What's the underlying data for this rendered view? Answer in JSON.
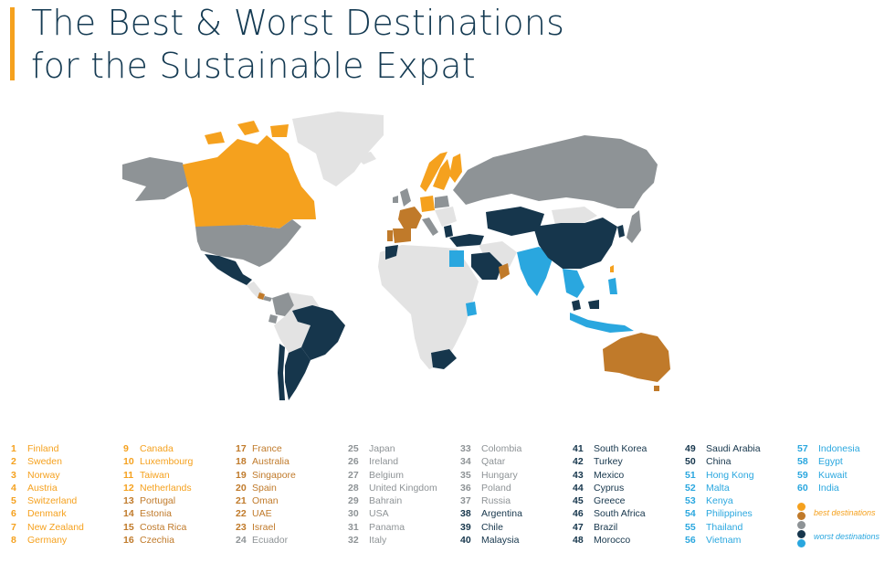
{
  "title": {
    "line1": "The Best & Worst Destinations",
    "line2": "for the Sustainable Expat"
  },
  "colors": {
    "accent": "#f5a11e",
    "tier1": "#f5a11e",
    "tier2": "#c07a2a",
    "tier3": "#8e9396",
    "tier4": "#16364c",
    "tier5": "#2aa7df",
    "unranked": "#e3e3e3"
  },
  "ranking": [
    {
      "rank": "1",
      "name": "Finland",
      "tier": 1
    },
    {
      "rank": "2",
      "name": "Sweden",
      "tier": 1
    },
    {
      "rank": "3",
      "name": "Norway",
      "tier": 1
    },
    {
      "rank": "4",
      "name": "Austria",
      "tier": 1
    },
    {
      "rank": "5",
      "name": "Switzerland",
      "tier": 1
    },
    {
      "rank": "6",
      "name": "Denmark",
      "tier": 1
    },
    {
      "rank": "7",
      "name": "New Zealand",
      "tier": 1
    },
    {
      "rank": "8",
      "name": "Germany",
      "tier": 1
    },
    {
      "rank": "9",
      "name": "Canada",
      "tier": 1
    },
    {
      "rank": "10",
      "name": "Luxembourg",
      "tier": 1
    },
    {
      "rank": "11",
      "name": "Taiwan",
      "tier": 1
    },
    {
      "rank": "12",
      "name": "Netherlands",
      "tier": 1
    },
    {
      "rank": "13",
      "name": "Portugal",
      "tier": 2
    },
    {
      "rank": "14",
      "name": "Estonia",
      "tier": 2
    },
    {
      "rank": "15",
      "name": "Costa Rica",
      "tier": 2
    },
    {
      "rank": "16",
      "name": "Czechia",
      "tier": 2
    },
    {
      "rank": "17",
      "name": "France",
      "tier": 2
    },
    {
      "rank": "18",
      "name": "Australia",
      "tier": 2
    },
    {
      "rank": "19",
      "name": "Singapore",
      "tier": 2
    },
    {
      "rank": "20",
      "name": "Spain",
      "tier": 2
    },
    {
      "rank": "21",
      "name": "Oman",
      "tier": 2
    },
    {
      "rank": "22",
      "name": "UAE",
      "tier": 2
    },
    {
      "rank": "23",
      "name": "Israel",
      "tier": 2
    },
    {
      "rank": "24",
      "name": "Ecuador",
      "tier": 3
    },
    {
      "rank": "25",
      "name": "Japan",
      "tier": 3
    },
    {
      "rank": "26",
      "name": "Ireland",
      "tier": 3
    },
    {
      "rank": "27",
      "name": "Belgium",
      "tier": 3
    },
    {
      "rank": "28",
      "name": "United Kingdom",
      "tier": 3
    },
    {
      "rank": "29",
      "name": "Bahrain",
      "tier": 3
    },
    {
      "rank": "30",
      "name": "USA",
      "tier": 3
    },
    {
      "rank": "31",
      "name": "Panama",
      "tier": 3
    },
    {
      "rank": "32",
      "name": "Italy",
      "tier": 3
    },
    {
      "rank": "33",
      "name": "Colombia",
      "tier": 3
    },
    {
      "rank": "34",
      "name": "Qatar",
      "tier": 3
    },
    {
      "rank": "35",
      "name": "Hungary",
      "tier": 3
    },
    {
      "rank": "36",
      "name": "Poland",
      "tier": 3
    },
    {
      "rank": "37",
      "name": "Russia",
      "tier": 3
    },
    {
      "rank": "38",
      "name": "Argentina",
      "tier": 4
    },
    {
      "rank": "39",
      "name": "Chile",
      "tier": 4
    },
    {
      "rank": "40",
      "name": "Malaysia",
      "tier": 4
    },
    {
      "rank": "41",
      "name": "South Korea",
      "tier": 4
    },
    {
      "rank": "42",
      "name": "Turkey",
      "tier": 4
    },
    {
      "rank": "43",
      "name": "Mexico",
      "tier": 4
    },
    {
      "rank": "44",
      "name": "Cyprus",
      "tier": 4
    },
    {
      "rank": "45",
      "name": "Greece",
      "tier": 4
    },
    {
      "rank": "46",
      "name": "South Africa",
      "tier": 4
    },
    {
      "rank": "47",
      "name": "Brazil",
      "tier": 4
    },
    {
      "rank": "48",
      "name": "Morocco",
      "tier": 4
    },
    {
      "rank": "49",
      "name": "Saudi Arabia",
      "tier": 4
    },
    {
      "rank": "50",
      "name": "China",
      "tier": 4
    },
    {
      "rank": "51",
      "name": "Hong Kong",
      "tier": 5
    },
    {
      "rank": "52",
      "name": "Malta",
      "tier": 5
    },
    {
      "rank": "53",
      "name": "Kenya",
      "tier": 5
    },
    {
      "rank": "54",
      "name": "Philippines",
      "tier": 5
    },
    {
      "rank": "55",
      "name": "Thailand",
      "tier": 5
    },
    {
      "rank": "56",
      "name": "Vietnam",
      "tier": 5
    },
    {
      "rank": "57",
      "name": "Indonesia",
      "tier": 5
    },
    {
      "rank": "58",
      "name": "Egypt",
      "tier": 5
    },
    {
      "rank": "59",
      "name": "Kuwait",
      "tier": 5
    },
    {
      "rank": "60",
      "name": "India",
      "tier": 5
    }
  ],
  "legend_key": {
    "best_label": "best destinations",
    "worst_label": "worst destinations"
  }
}
